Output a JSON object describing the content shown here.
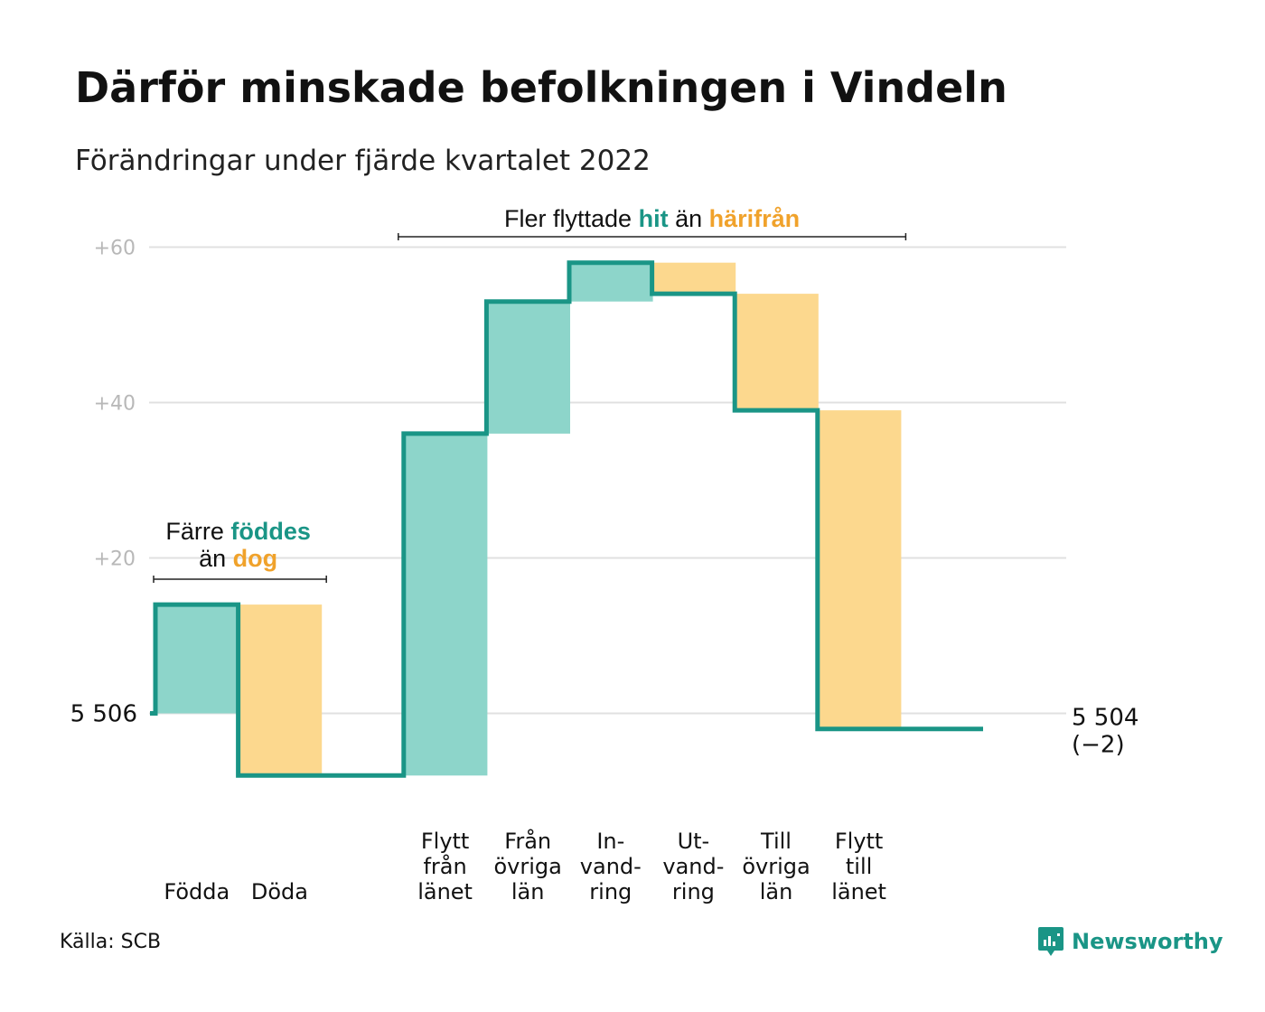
{
  "title": "Därför minskade befolkningen i Vindeln",
  "subtitle": "Förändringar under fjärde kvartalet 2022",
  "source": "Källa: SCB",
  "brand": {
    "name": "Newsworthy",
    "icon": "newsworthy-logo-icon"
  },
  "colors": {
    "teal": "#1a9586",
    "teal_fill": "#8dd5ca",
    "orange_fill": "#fcd88e",
    "orange_text": "#f0a22b",
    "grid": "#e0e0e0"
  },
  "chart_data": {
    "type": "waterfall",
    "baseline": 5506,
    "start_label": "5 506",
    "end_label": "5 504",
    "end_change": "(−2)",
    "y_ticks": [
      {
        "label": "+60",
        "value": 60
      },
      {
        "label": "+40",
        "value": 40
      },
      {
        "label": "+20",
        "value": 20
      }
    ],
    "ylim": [
      -10,
      62
    ],
    "grid": true,
    "steps": [
      {
        "lines": [
          "Födda"
        ],
        "value": 14,
        "kind": "in"
      },
      {
        "lines": [
          "Döda"
        ],
        "value": -22,
        "kind": "out"
      },
      {
        "lines": [],
        "value": 0,
        "kind": "gap"
      },
      {
        "lines": [
          "Flytt",
          "från",
          "länet"
        ],
        "value": 44,
        "kind": "in"
      },
      {
        "lines": [
          "Från",
          "övriga",
          "län"
        ],
        "value": 17,
        "kind": "in"
      },
      {
        "lines": [
          "In-",
          "vand-",
          "ring"
        ],
        "value": 5,
        "kind": "in"
      },
      {
        "lines": [
          "Ut-",
          "vand-",
          "ring"
        ],
        "value": -4,
        "kind": "out"
      },
      {
        "lines": [
          "Till",
          "övriga",
          "län"
        ],
        "value": -15,
        "kind": "out"
      },
      {
        "lines": [
          "Flytt",
          "till",
          "länet"
        ],
        "value": -41,
        "kind": "out"
      },
      {
        "lines": [],
        "value": 0,
        "kind": "gap"
      }
    ],
    "annotations": [
      {
        "line1_a": "Färre ",
        "line1_b": "föddes",
        "line2_a": "än ",
        "line2_b": "dog",
        "from_step": 0,
        "to_step": 1
      },
      {
        "a": "Fler flyttade ",
        "b": "hit",
        "c": " än ",
        "d": "härifrån",
        "from_step": 3,
        "to_step": 8
      }
    ]
  }
}
